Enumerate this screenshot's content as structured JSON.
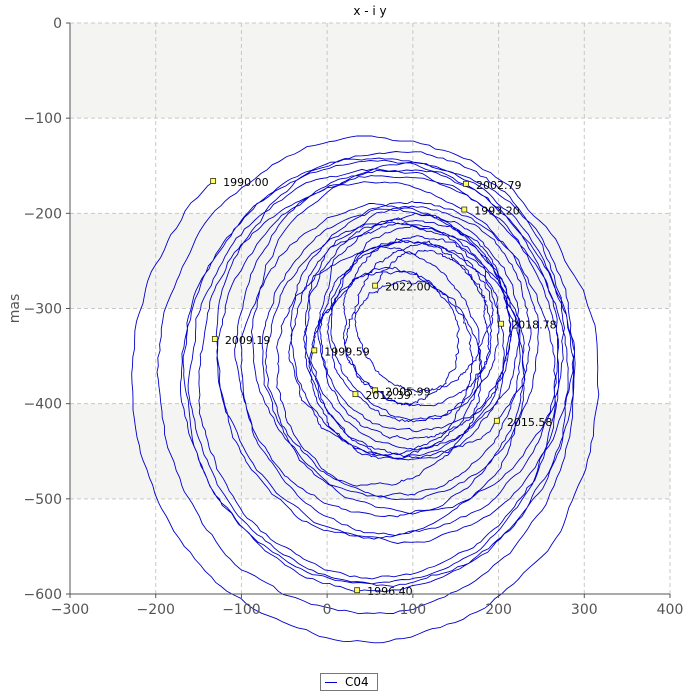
{
  "chart_data": {
    "type": "line",
    "title": "x - i y",
    "xlabel": "",
    "ylabel": "mas",
    "xlim": [
      -300,
      400
    ],
    "ylim": [
      -600,
      0
    ],
    "x_ticks": [
      -300,
      -200,
      -100,
      0,
      100,
      200,
      300,
      400
    ],
    "y_ticks": [
      0,
      -100,
      -200,
      -300,
      -400,
      -500,
      -600
    ],
    "x_tick_labels": [
      "−300",
      "−200",
      "−100",
      "0",
      "100",
      "200",
      "300",
      "400"
    ],
    "y_tick_labels": [
      "0",
      "−100",
      "−200",
      "−300",
      "−400",
      "−500",
      "−600"
    ],
    "grid": true,
    "legend_position": "bottom-center",
    "series": [
      {
        "name": "C04",
        "color": "#0000cc",
        "epoch_labels": [
          {
            "label": "1990.00",
            "x": -133,
            "y": -166
          },
          {
            "label": "1993.20",
            "x": 160,
            "y": -196
          },
          {
            "label": "1996.40",
            "x": 35,
            "y": -596
          },
          {
            "label": "1999.59",
            "x": -15,
            "y": -344
          },
          {
            "label": "2002.79",
            "x": 162,
            "y": -169
          },
          {
            "label": "2005.99",
            "x": 56,
            "y": -386
          },
          {
            "label": "2009.19",
            "x": -131,
            "y": -332
          },
          {
            "label": "2012.39",
            "x": 33,
            "y": -390
          },
          {
            "label": "2015.58",
            "x": 198,
            "y": -418
          },
          {
            "label": "2018.78",
            "x": 203,
            "y": -316
          },
          {
            "label": "2022.00",
            "x": 56,
            "y": -276
          }
        ]
      }
    ]
  }
}
